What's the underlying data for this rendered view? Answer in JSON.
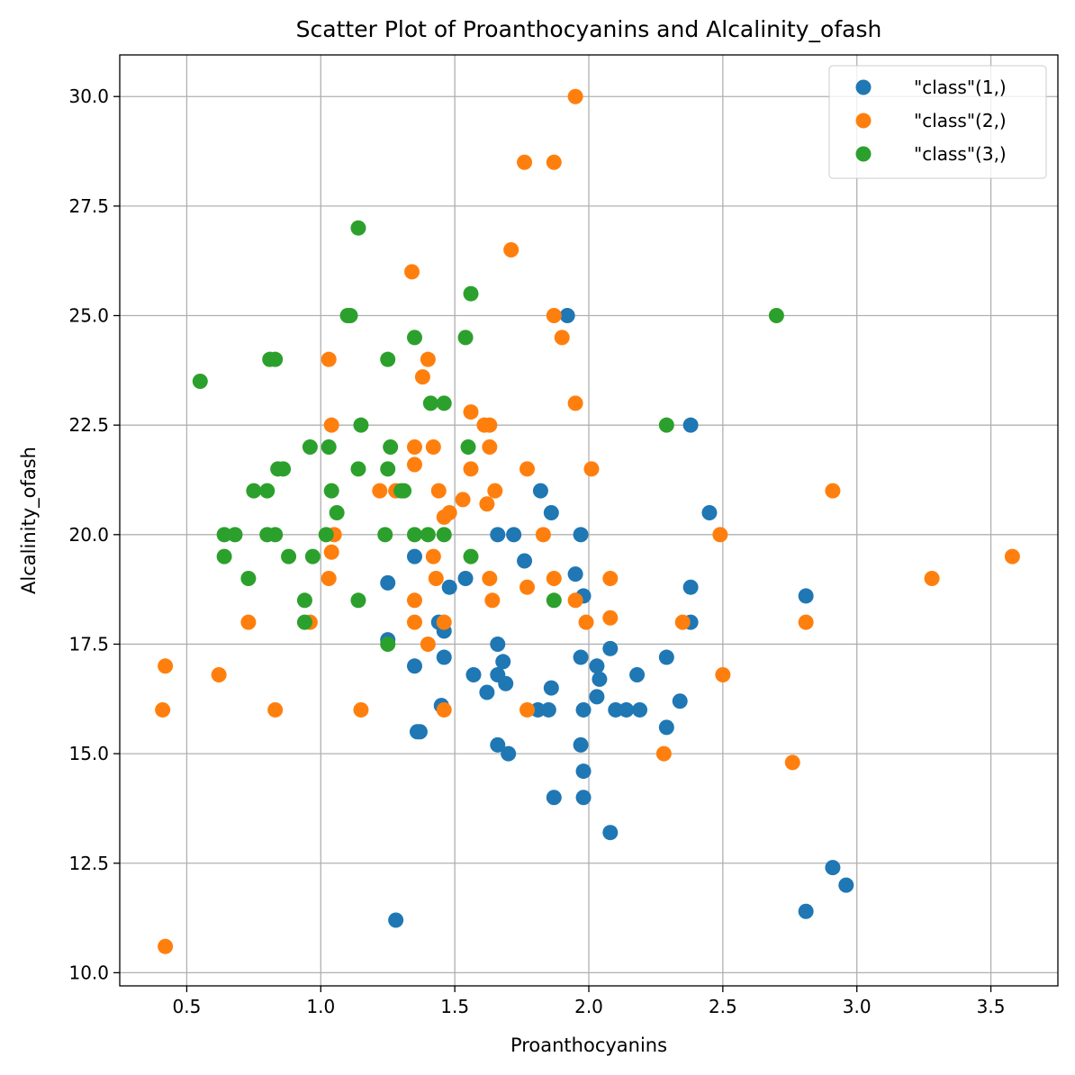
{
  "chart_data": {
    "type": "scatter",
    "title": "Scatter Plot of Proanthocyanins and Alcalinity_ofash",
    "xlabel": "Proanthocyanins",
    "ylabel": "Alcalinity_ofash",
    "xlim": [
      0.25,
      3.75
    ],
    "ylim": [
      9.7,
      30.95
    ],
    "xticks": [
      0.5,
      1.0,
      1.5,
      2.0,
      2.5,
      3.0,
      3.5
    ],
    "xtick_labels": [
      "0.5",
      "1.0",
      "1.5",
      "2.0",
      "2.5",
      "3.0",
      "3.5"
    ],
    "yticks": [
      10.0,
      12.5,
      15.0,
      17.5,
      20.0,
      22.5,
      25.0,
      27.5,
      30.0
    ],
    "ytick_labels": [
      "10.0",
      "12.5",
      "15.0",
      "17.5",
      "20.0",
      "22.5",
      "25.0",
      "27.5",
      "30.0"
    ],
    "grid": true,
    "legend_position": "top-right",
    "series": [
      {
        "name": "\"class\"(1,)",
        "color": "#1f77b4",
        "points": [
          [
            1.92,
            25.0
          ],
          [
            2.38,
            22.5
          ],
          [
            2.45,
            20.5
          ],
          [
            1.82,
            21.0
          ],
          [
            1.86,
            20.5
          ],
          [
            1.66,
            20.0
          ],
          [
            1.72,
            20.0
          ],
          [
            1.97,
            20.0
          ],
          [
            1.35,
            19.5
          ],
          [
            1.76,
            19.4
          ],
          [
            1.95,
            19.1
          ],
          [
            1.54,
            19.0
          ],
          [
            1.25,
            18.9
          ],
          [
            1.48,
            18.8
          ],
          [
            2.38,
            18.8
          ],
          [
            1.98,
            18.6
          ],
          [
            2.81,
            18.6
          ],
          [
            1.44,
            18.0
          ],
          [
            2.38,
            18.0
          ],
          [
            1.46,
            17.8
          ],
          [
            1.25,
            17.6
          ],
          [
            1.66,
            17.5
          ],
          [
            2.08,
            17.4
          ],
          [
            1.46,
            17.2
          ],
          [
            1.97,
            17.2
          ],
          [
            2.29,
            17.2
          ],
          [
            1.68,
            17.1
          ],
          [
            1.35,
            17.0
          ],
          [
            2.03,
            17.0
          ],
          [
            1.57,
            16.8
          ],
          [
            1.66,
            16.8
          ],
          [
            2.04,
            16.7
          ],
          [
            2.18,
            16.8
          ],
          [
            1.69,
            16.6
          ],
          [
            1.86,
            16.5
          ],
          [
            1.62,
            16.4
          ],
          [
            2.03,
            16.3
          ],
          [
            2.34,
            16.2
          ],
          [
            1.45,
            16.1
          ],
          [
            1.81,
            16.0
          ],
          [
            1.85,
            16.0
          ],
          [
            1.98,
            16.0
          ],
          [
            2.1,
            16.0
          ],
          [
            2.14,
            16.0
          ],
          [
            2.19,
            16.0
          ],
          [
            2.29,
            15.6
          ],
          [
            1.36,
            15.5
          ],
          [
            1.37,
            15.5
          ],
          [
            1.66,
            15.2
          ],
          [
            1.97,
            15.2
          ],
          [
            1.7,
            15.0
          ],
          [
            1.98,
            14.6
          ],
          [
            1.87,
            14.0
          ],
          [
            1.98,
            14.0
          ],
          [
            2.08,
            13.2
          ],
          [
            2.91,
            12.4
          ],
          [
            2.96,
            12.0
          ],
          [
            2.81,
            11.4
          ],
          [
            1.28,
            11.2
          ]
        ]
      },
      {
        "name": "\"class\"(2,)",
        "color": "#ff7f0e",
        "points": [
          [
            1.95,
            30.0
          ],
          [
            1.76,
            28.5
          ],
          [
            1.87,
            28.5
          ],
          [
            1.71,
            26.5
          ],
          [
            1.34,
            26.0
          ],
          [
            1.87,
            25.0
          ],
          [
            1.9,
            24.5
          ],
          [
            1.03,
            24.0
          ],
          [
            1.4,
            24.0
          ],
          [
            1.38,
            23.6
          ],
          [
            1.95,
            23.0
          ],
          [
            1.56,
            22.8
          ],
          [
            1.04,
            22.5
          ],
          [
            1.61,
            22.5
          ],
          [
            1.63,
            22.5
          ],
          [
            1.35,
            22.0
          ],
          [
            1.42,
            22.0
          ],
          [
            1.63,
            22.0
          ],
          [
            1.35,
            21.6
          ],
          [
            1.56,
            21.5
          ],
          [
            1.77,
            21.5
          ],
          [
            2.01,
            21.5
          ],
          [
            1.22,
            21.0
          ],
          [
            1.28,
            21.0
          ],
          [
            1.44,
            21.0
          ],
          [
            1.65,
            21.0
          ],
          [
            2.91,
            21.0
          ],
          [
            1.53,
            20.8
          ],
          [
            1.62,
            20.7
          ],
          [
            1.48,
            20.5
          ],
          [
            1.46,
            20.4
          ],
          [
            1.05,
            20.0
          ],
          [
            1.83,
            20.0
          ],
          [
            2.49,
            20.0
          ],
          [
            1.04,
            19.6
          ],
          [
            1.42,
            19.5
          ],
          [
            3.58,
            19.5
          ],
          [
            1.03,
            19.0
          ],
          [
            1.43,
            19.0
          ],
          [
            1.63,
            19.0
          ],
          [
            1.87,
            19.0
          ],
          [
            2.08,
            19.0
          ],
          [
            3.28,
            19.0
          ],
          [
            1.77,
            18.8
          ],
          [
            1.35,
            18.5
          ],
          [
            1.64,
            18.5
          ],
          [
            1.95,
            18.5
          ],
          [
            2.08,
            18.1
          ],
          [
            0.73,
            18.0
          ],
          [
            0.96,
            18.0
          ],
          [
            1.35,
            18.0
          ],
          [
            1.46,
            18.0
          ],
          [
            1.99,
            18.0
          ],
          [
            2.35,
            18.0
          ],
          [
            2.81,
            18.0
          ],
          [
            1.4,
            17.5
          ],
          [
            0.42,
            17.0
          ],
          [
            0.62,
            16.8
          ],
          [
            2.5,
            16.8
          ],
          [
            0.41,
            16.0
          ],
          [
            0.83,
            16.0
          ],
          [
            1.15,
            16.0
          ],
          [
            1.46,
            16.0
          ],
          [
            1.77,
            16.0
          ],
          [
            2.28,
            15.0
          ],
          [
            2.76,
            14.8
          ],
          [
            0.42,
            10.6
          ]
        ]
      },
      {
        "name": "\"class\"(3,)",
        "color": "#2ca02c",
        "points": [
          [
            1.14,
            27.0
          ],
          [
            1.56,
            25.5
          ],
          [
            1.1,
            25.0
          ],
          [
            1.11,
            25.0
          ],
          [
            2.7,
            25.0
          ],
          [
            1.35,
            24.5
          ],
          [
            1.54,
            24.5
          ],
          [
            0.81,
            24.0
          ],
          [
            0.83,
            24.0
          ],
          [
            1.25,
            24.0
          ],
          [
            0.55,
            23.5
          ],
          [
            1.41,
            23.0
          ],
          [
            1.46,
            23.0
          ],
          [
            1.15,
            22.5
          ],
          [
            2.29,
            22.5
          ],
          [
            0.96,
            22.0
          ],
          [
            1.03,
            22.0
          ],
          [
            1.26,
            22.0
          ],
          [
            1.55,
            22.0
          ],
          [
            0.84,
            21.5
          ],
          [
            0.86,
            21.5
          ],
          [
            1.14,
            21.5
          ],
          [
            1.25,
            21.5
          ],
          [
            0.75,
            21.0
          ],
          [
            0.8,
            21.0
          ],
          [
            1.04,
            21.0
          ],
          [
            1.3,
            21.0
          ],
          [
            1.31,
            21.0
          ],
          [
            1.06,
            20.5
          ],
          [
            0.64,
            20.0
          ],
          [
            0.68,
            20.0
          ],
          [
            0.8,
            20.0
          ],
          [
            0.83,
            20.0
          ],
          [
            1.02,
            20.0
          ],
          [
            1.24,
            20.0
          ],
          [
            1.35,
            20.0
          ],
          [
            1.4,
            20.0
          ],
          [
            1.46,
            20.0
          ],
          [
            0.64,
            19.5
          ],
          [
            0.88,
            19.5
          ],
          [
            0.97,
            19.5
          ],
          [
            1.56,
            19.5
          ],
          [
            0.73,
            19.0
          ],
          [
            0.94,
            18.5
          ],
          [
            1.14,
            18.5
          ],
          [
            1.87,
            18.5
          ],
          [
            0.94,
            18.0
          ],
          [
            1.25,
            17.5
          ]
        ]
      }
    ]
  }
}
